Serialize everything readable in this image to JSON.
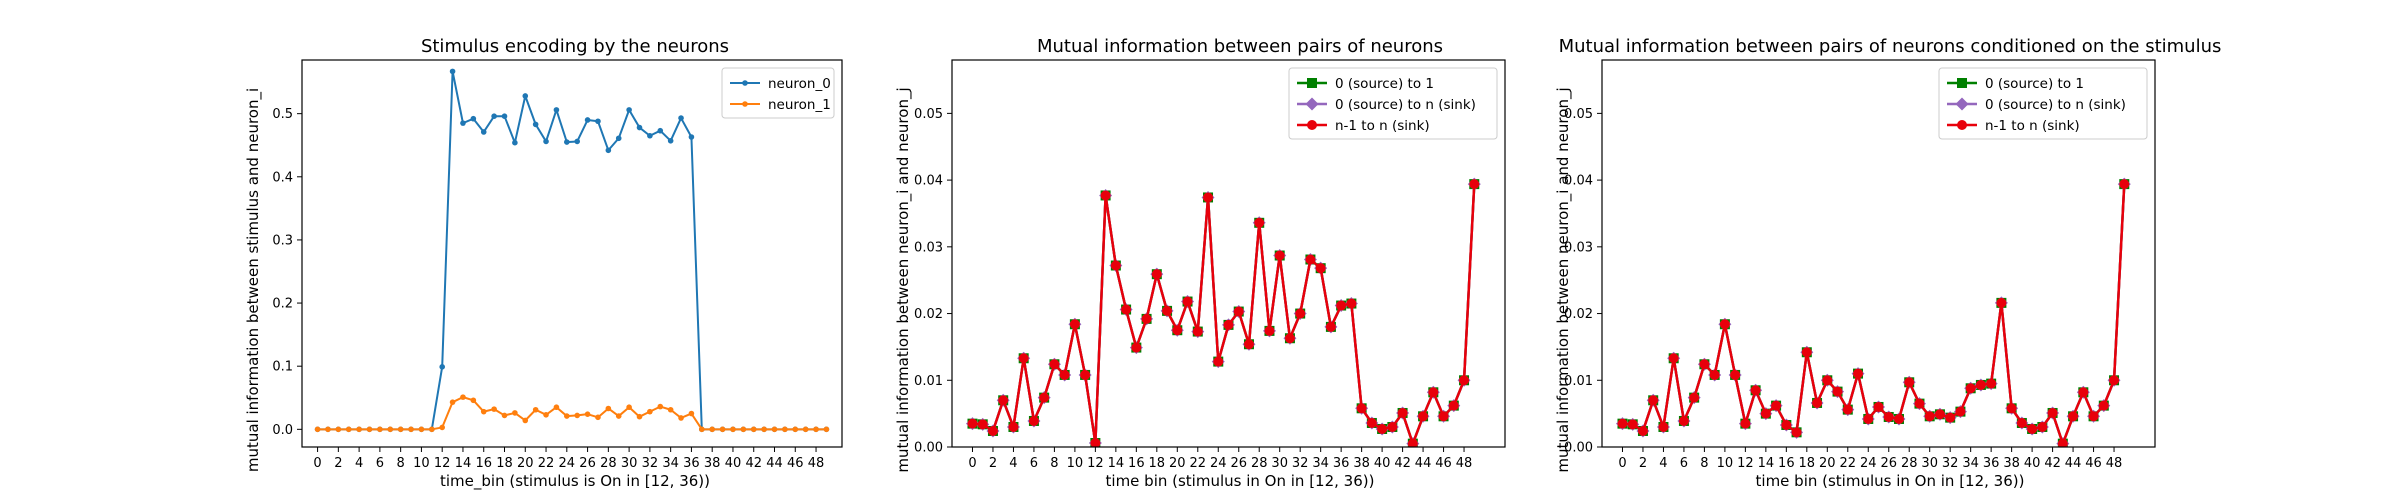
{
  "chart_data": [
    {
      "type": "line",
      "title": "Stimulus encoding by the neurons",
      "xlabel": "time_bin (stimulus is On in [12, 36))",
      "ylabel": "mutual information between stimulus and neuron_i",
      "xlim": [
        -1.5,
        50.5
      ],
      "ylim": [
        -0.028,
        0.585
      ],
      "xticks": [
        0,
        2,
        4,
        6,
        8,
        10,
        12,
        14,
        16,
        18,
        20,
        22,
        24,
        26,
        28,
        30,
        32,
        34,
        36,
        38,
        40,
        42,
        44,
        46,
        48
      ],
      "yticks": [
        0.0,
        0.1,
        0.2,
        0.3,
        0.4,
        0.5
      ],
      "ytick_labels": [
        "0.0",
        "0.1",
        "0.2",
        "0.3",
        "0.4",
        "0.5"
      ],
      "legend": "top-right",
      "series": [
        {
          "name": "neuron_0",
          "color": "#1f77b4",
          "marker": "dot",
          "x": [
            0,
            1,
            2,
            3,
            4,
            5,
            6,
            7,
            8,
            9,
            10,
            11,
            12,
            13,
            14,
            15,
            16,
            17,
            18,
            19,
            20,
            21,
            22,
            23,
            24,
            25,
            26,
            27,
            28,
            29,
            30,
            31,
            32,
            33,
            34,
            35,
            36,
            37,
            38,
            39,
            40,
            41,
            42,
            43,
            44,
            45,
            46,
            47,
            48,
            49
          ],
          "values": [
            0,
            0,
            0,
            0,
            0,
            0,
            0,
            0,
            0,
            0,
            0,
            0,
            0.099,
            0.567,
            0.485,
            0.492,
            0.471,
            0.496,
            0.496,
            0.454,
            0.528,
            0.483,
            0.456,
            0.506,
            0.455,
            0.456,
            0.49,
            0.488,
            0.442,
            0.461,
            0.506,
            0.478,
            0.465,
            0.473,
            0.457,
            0.493,
            0.463,
            0,
            0,
            0,
            0,
            0,
            0,
            0,
            0,
            0,
            0,
            0,
            0,
            0
          ]
        },
        {
          "name": "neuron_1",
          "color": "#ff7f0e",
          "marker": "dot",
          "x": [
            0,
            1,
            2,
            3,
            4,
            5,
            6,
            7,
            8,
            9,
            10,
            11,
            12,
            13,
            14,
            15,
            16,
            17,
            18,
            19,
            20,
            21,
            22,
            23,
            24,
            25,
            26,
            27,
            28,
            29,
            30,
            31,
            32,
            33,
            34,
            35,
            36,
            37,
            38,
            39,
            40,
            41,
            42,
            43,
            44,
            45,
            46,
            47,
            48,
            49
          ],
          "values": [
            0,
            0,
            0,
            0,
            0,
            0,
            0,
            0,
            0,
            0,
            0,
            0,
            0.003,
            0.043,
            0.051,
            0.046,
            0.028,
            0.032,
            0.022,
            0.026,
            0.014,
            0.031,
            0.023,
            0.035,
            0.021,
            0.022,
            0.024,
            0.019,
            0.033,
            0.021,
            0.035,
            0.02,
            0.028,
            0.036,
            0.031,
            0.018,
            0.025,
            0,
            0,
            0,
            0,
            0,
            0,
            0,
            0,
            0,
            0,
            0,
            0,
            0
          ]
        }
      ]
    },
    {
      "type": "line",
      "title": "Mutual information between pairs of neurons",
      "xlabel": "time bin (stimulus in On in [12, 36))",
      "ylabel": "mutual information between neuron_i and neuron_j",
      "xlim": [
        -2,
        52
      ],
      "ylim": [
        0,
        0.058
      ],
      "xticks": [
        0,
        2,
        4,
        6,
        8,
        10,
        12,
        14,
        16,
        18,
        20,
        22,
        24,
        26,
        28,
        30,
        32,
        34,
        36,
        38,
        40,
        42,
        44,
        46,
        48
      ],
      "yticks": [
        0.0,
        0.01,
        0.02,
        0.03,
        0.04,
        0.05
      ],
      "ytick_labels": [
        "0.00",
        "0.01",
        "0.02",
        "0.03",
        "0.04",
        "0.05"
      ],
      "legend": "top-right",
      "series": [
        {
          "name": "0 (source) to 1",
          "color": "#008000",
          "marker": "square",
          "x": [
            0,
            1,
            2,
            3,
            4,
            5,
            6,
            7,
            8,
            9,
            10,
            11,
            12,
            13,
            14,
            15,
            16,
            17,
            18,
            19,
            20,
            21,
            22,
            23,
            24,
            25,
            26,
            27,
            28,
            29,
            30,
            31,
            32,
            33,
            34,
            35,
            36,
            37,
            38,
            39,
            40,
            41,
            42,
            43,
            44,
            45,
            46,
            47,
            48,
            49
          ],
          "values": [
            0.0035,
            0.0034,
            0.0024,
            0.007,
            0.003,
            0.0133,
            0.0039,
            0.0074,
            0.0124,
            0.0108,
            0.0184,
            0.0108,
            0.0006,
            0.0377,
            0.0272,
            0.0206,
            0.0149,
            0.0192,
            0.0259,
            0.0204,
            0.0175,
            0.0218,
            0.0173,
            0.0374,
            0.0128,
            0.0183,
            0.0203,
            0.0154,
            0.0336,
            0.0174,
            0.0287,
            0.0163,
            0.02,
            0.0281,
            0.0268,
            0.018,
            0.0212,
            0.0215,
            0.0058,
            0.0036,
            0.0027,
            0.003,
            0.0051,
            0.0005,
            0.0046,
            0.0082,
            0.0046,
            0.0062,
            0.01,
            0.0394
          ]
        },
        {
          "name": "0 (source) to n (sink)",
          "color": "#9467bd",
          "marker": "diamond",
          "x": [
            0,
            1,
            2,
            3,
            4,
            5,
            6,
            7,
            8,
            9,
            10,
            11,
            12,
            13,
            14,
            15,
            16,
            17,
            18,
            19,
            20,
            21,
            22,
            23,
            24,
            25,
            26,
            27,
            28,
            29,
            30,
            31,
            32,
            33,
            34,
            35,
            36,
            37,
            38,
            39,
            40,
            41,
            42,
            43,
            44,
            45,
            46,
            47,
            48,
            49
          ],
          "values": [
            0.0035,
            0.0034,
            0.0024,
            0.007,
            0.003,
            0.0133,
            0.0039,
            0.0074,
            0.0124,
            0.0108,
            0.0184,
            0.0108,
            0.0006,
            0.0377,
            0.0272,
            0.0206,
            0.0149,
            0.0192,
            0.0259,
            0.0204,
            0.0175,
            0.0218,
            0.0173,
            0.0374,
            0.0128,
            0.0183,
            0.0203,
            0.0154,
            0.0336,
            0.0174,
            0.0287,
            0.0163,
            0.02,
            0.0281,
            0.0268,
            0.018,
            0.0212,
            0.0215,
            0.0058,
            0.0036,
            0.0027,
            0.003,
            0.0051,
            0.0005,
            0.0046,
            0.0082,
            0.0046,
            0.0062,
            0.01,
            0.0394
          ]
        },
        {
          "name": "n-1 to n (sink)",
          "color": "#e8000b",
          "marker": "dot",
          "x": [
            0,
            1,
            2,
            3,
            4,
            5,
            6,
            7,
            8,
            9,
            10,
            11,
            12,
            13,
            14,
            15,
            16,
            17,
            18,
            19,
            20,
            21,
            22,
            23,
            24,
            25,
            26,
            27,
            28,
            29,
            30,
            31,
            32,
            33,
            34,
            35,
            36,
            37,
            38,
            39,
            40,
            41,
            42,
            43,
            44,
            45,
            46,
            47,
            48,
            49
          ],
          "values": [
            0.0035,
            0.0034,
            0.0024,
            0.007,
            0.003,
            0.0133,
            0.0039,
            0.0074,
            0.0124,
            0.0108,
            0.0184,
            0.0108,
            0.0006,
            0.0377,
            0.0272,
            0.0206,
            0.0149,
            0.0192,
            0.0259,
            0.0204,
            0.0175,
            0.0218,
            0.0173,
            0.0374,
            0.0128,
            0.0183,
            0.0203,
            0.0154,
            0.0336,
            0.0174,
            0.0287,
            0.0163,
            0.02,
            0.0281,
            0.0268,
            0.018,
            0.0212,
            0.0215,
            0.0058,
            0.0036,
            0.0027,
            0.003,
            0.0051,
            0.0005,
            0.0046,
            0.0082,
            0.0046,
            0.0062,
            0.01,
            0.0394
          ]
        }
      ]
    },
    {
      "type": "line",
      "title": "Mutual information between pairs of neurons conditioned on the stimulus",
      "xlabel": "time bin (stimulus in On in [12, 36))",
      "ylabel": "mutual information between neuron_i and neuron_j",
      "xlim": [
        -2,
        52
      ],
      "ylim": [
        0,
        0.058
      ],
      "xticks": [
        0,
        2,
        4,
        6,
        8,
        10,
        12,
        14,
        16,
        18,
        20,
        22,
        24,
        26,
        28,
        30,
        32,
        34,
        36,
        38,
        40,
        42,
        44,
        46,
        48
      ],
      "yticks": [
        0.0,
        0.01,
        0.02,
        0.03,
        0.04,
        0.05
      ],
      "ytick_labels": [
        "0.00",
        "0.01",
        "0.02",
        "0.03",
        "0.04",
        "0.05"
      ],
      "legend": "top-right",
      "series": [
        {
          "name": "0 (source) to 1",
          "color": "#008000",
          "marker": "square",
          "x": [
            0,
            1,
            2,
            3,
            4,
            5,
            6,
            7,
            8,
            9,
            10,
            11,
            12,
            13,
            14,
            15,
            16,
            17,
            18,
            19,
            20,
            21,
            22,
            23,
            24,
            25,
            26,
            27,
            28,
            29,
            30,
            31,
            32,
            33,
            34,
            35,
            36,
            37,
            38,
            39,
            40,
            41,
            42,
            43,
            44,
            45,
            46,
            47,
            48,
            49
          ],
          "values": [
            0.0035,
            0.0034,
            0.0024,
            0.007,
            0.003,
            0.0133,
            0.0039,
            0.0074,
            0.0124,
            0.0108,
            0.0184,
            0.0108,
            0.0035,
            0.0085,
            0.005,
            0.0062,
            0.0033,
            0.0022,
            0.0142,
            0.0066,
            0.01,
            0.0083,
            0.0056,
            0.011,
            0.0042,
            0.006,
            0.0045,
            0.0042,
            0.0097,
            0.0065,
            0.0046,
            0.0049,
            0.0044,
            0.0053,
            0.0088,
            0.0093,
            0.0095,
            0.0216,
            0.0058,
            0.0036,
            0.0027,
            0.003,
            0.0051,
            0.0005,
            0.0046,
            0.0082,
            0.0046,
            0.0062,
            0.01,
            0.0394
          ]
        },
        {
          "name": "0 (source) to n (sink)",
          "color": "#9467bd",
          "marker": "diamond",
          "x": [
            0,
            1,
            2,
            3,
            4,
            5,
            6,
            7,
            8,
            9,
            10,
            11,
            12,
            13,
            14,
            15,
            16,
            17,
            18,
            19,
            20,
            21,
            22,
            23,
            24,
            25,
            26,
            27,
            28,
            29,
            30,
            31,
            32,
            33,
            34,
            35,
            36,
            37,
            38,
            39,
            40,
            41,
            42,
            43,
            44,
            45,
            46,
            47,
            48,
            49
          ],
          "values": [
            0.0035,
            0.0034,
            0.0024,
            0.007,
            0.003,
            0.0133,
            0.0039,
            0.0074,
            0.0124,
            0.0108,
            0.0184,
            0.0108,
            0.0035,
            0.0085,
            0.005,
            0.0062,
            0.0033,
            0.0022,
            0.0142,
            0.0066,
            0.01,
            0.0083,
            0.0056,
            0.011,
            0.0042,
            0.006,
            0.0045,
            0.0042,
            0.0097,
            0.0065,
            0.0046,
            0.0049,
            0.0044,
            0.0053,
            0.0088,
            0.0093,
            0.0095,
            0.0216,
            0.0058,
            0.0036,
            0.0027,
            0.003,
            0.0051,
            0.0005,
            0.0046,
            0.0082,
            0.0046,
            0.0062,
            0.01,
            0.0394
          ]
        },
        {
          "name": "n-1 to n (sink)",
          "color": "#e8000b",
          "marker": "dot",
          "x": [
            0,
            1,
            2,
            3,
            4,
            5,
            6,
            7,
            8,
            9,
            10,
            11,
            12,
            13,
            14,
            15,
            16,
            17,
            18,
            19,
            20,
            21,
            22,
            23,
            24,
            25,
            26,
            27,
            28,
            29,
            30,
            31,
            32,
            33,
            34,
            35,
            36,
            37,
            38,
            39,
            40,
            41,
            42,
            43,
            44,
            45,
            46,
            47,
            48,
            49
          ],
          "values": [
            0.0035,
            0.0034,
            0.0024,
            0.007,
            0.003,
            0.0133,
            0.0039,
            0.0074,
            0.0124,
            0.0108,
            0.0184,
            0.0108,
            0.0035,
            0.0085,
            0.005,
            0.0062,
            0.0033,
            0.0022,
            0.0142,
            0.0066,
            0.01,
            0.0083,
            0.0056,
            0.011,
            0.0042,
            0.006,
            0.0045,
            0.0042,
            0.0097,
            0.0065,
            0.0046,
            0.0049,
            0.0044,
            0.0053,
            0.0088,
            0.0093,
            0.0095,
            0.0216,
            0.0058,
            0.0036,
            0.0027,
            0.003,
            0.0051,
            0.0005,
            0.0046,
            0.0082,
            0.0046,
            0.0062,
            0.01,
            0.0394
          ]
        }
      ]
    }
  ]
}
